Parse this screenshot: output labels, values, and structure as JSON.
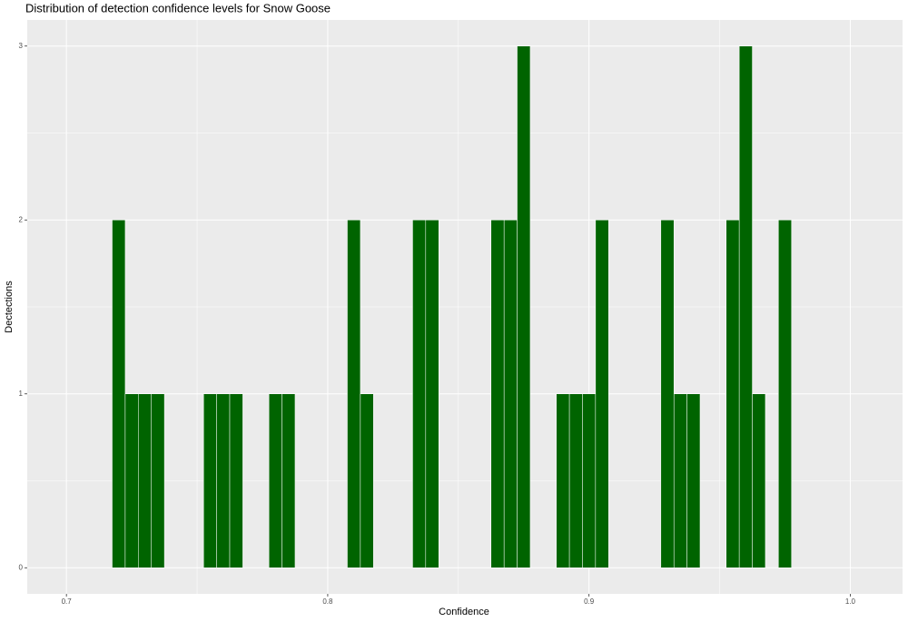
{
  "chart_data": {
    "type": "histogram",
    "title": "Distribution of detection confidence levels for Snow Goose",
    "x_label": "Confidence",
    "y_label": "Dectections",
    "bins": [
      0.7175,
      0.7225,
      0.7275,
      0.7325,
      0.7375,
      0.7425,
      0.7475,
      0.7525,
      0.7575,
      0.7625,
      0.7675,
      0.7725,
      0.7775,
      0.7825,
      0.7875,
      0.7925,
      0.7975,
      0.8025,
      0.8075,
      0.8125,
      0.8175,
      0.8225,
      0.8275,
      0.8325,
      0.8375,
      0.8425,
      0.8475,
      0.8525,
      0.8575,
      0.8625,
      0.8675,
      0.8725,
      0.8775,
      0.8825,
      0.8875,
      0.8925,
      0.8975,
      0.9025,
      0.9075,
      0.9125,
      0.9175,
      0.9225,
      0.9275,
      0.9325,
      0.9375,
      0.9425,
      0.9475,
      0.9525,
      0.9575,
      0.9625,
      0.9675,
      0.9725,
      0.9775
    ],
    "values": [
      2,
      1,
      1,
      1,
      0,
      0,
      0,
      1,
      1,
      1,
      0,
      0,
      1,
      1,
      0,
      0,
      0,
      0,
      2,
      1,
      0,
      0,
      0,
      2,
      2,
      0,
      0,
      0,
      0,
      2,
      2,
      3,
      0,
      0,
      1,
      1,
      1,
      2,
      0,
      0,
      0,
      0,
      2,
      1,
      1,
      0,
      0,
      2,
      3,
      1,
      0,
      2
    ],
    "color": "#006400",
    "xlim": [
      0.685,
      1.02
    ],
    "ylim": [
      -0.15,
      3.15
    ],
    "xticks": [
      0.7,
      0.8,
      0.9,
      {
        "value": 1,
        "label": "1.0"
      }
    ],
    "yticks": [
      0,
      1,
      2,
      3
    ],
    "xminor": [
      0.75,
      0.85,
      0.95
    ],
    "yminor": [
      0.5,
      1.5,
      2.5
    ],
    "grid": true
  }
}
